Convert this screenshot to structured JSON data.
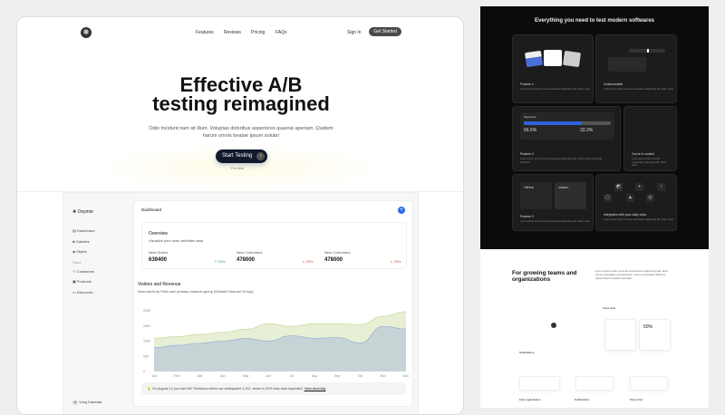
{
  "nav": {
    "links": [
      "Features",
      "Reviews",
      "Pricing",
      "FAQs"
    ],
    "sign_in": "Sign In",
    "get_started": "Get Started"
  },
  "hero": {
    "title_line1": "Effective A/B",
    "title_line2": "testing reimagined",
    "subtitle": "Odio incidunt nam sit illum. Voluptas doloribus asperiores quaerat aperiam. Quidem harum omnis beatae ipsum soluta!",
    "cta": "Start Testing",
    "cta_note": "For free"
  },
  "dashboard": {
    "brand": "Oxymor",
    "sidebar": [
      "Dashboard",
      "Galeries",
      "Objets"
    ],
    "section": "Store",
    "store_items": [
      "Customers",
      "Products",
      "Discounts"
    ],
    "user_initial": "M",
    "user": "Vung Kakeata",
    "header": "Dashboard",
    "overview": {
      "title": "Overview",
      "subtitle": "Visualize your main activities data",
      "stats": [
        {
          "label": "New Orders",
          "value": "639400",
          "change": "33%",
          "dir": "up"
        },
        {
          "label": "New Customers",
          "value": "478000",
          "change": "15%",
          "dir": "down"
        },
        {
          "label": "New Customers",
          "value": "478000",
          "change": "15%",
          "dir": "down"
        }
      ]
    },
    "chart_title": "Visitors and Revenue",
    "chart_subtitle": "New users by First user primary channel group (Default Channel Group)",
    "alert": "On August 12 you had 987 Sessions where we anticipated 1,242, which is 20% less than expected.",
    "alert_link": "View Anomaly"
  },
  "chart_data": {
    "type": "area",
    "categories": [
      "Jan",
      "Feb",
      "Mar",
      "Apr",
      "May",
      "Jun",
      "Jul",
      "Aug",
      "Sep",
      "Oct",
      "Nov",
      "Dec"
    ],
    "yticks": [
      "0",
      "500",
      "1000",
      "1500",
      "2000"
    ],
    "ylim": [
      0,
      2000
    ],
    "series": [
      {
        "values": [
          1090,
          1150,
          1220,
          1290,
          1390,
          1575,
          1485,
          1575,
          1575,
          1545,
          1820,
          1970
        ],
        "color": "#c9dca0"
      },
      {
        "values": [
          790,
          860,
          930,
          1000,
          1090,
          1000,
          1180,
          1090,
          1120,
          940,
          1485,
          1400
        ],
        "color": "#9fb3d9"
      }
    ]
  },
  "features": {
    "title": "Everything you need to test modern softwares",
    "cards": [
      {
        "title": "Feature 1",
        "desc": "Lorem ipsum dolor sit amet consectetur adipisicing elit. Dolor, quae."
      },
      {
        "title": "Customizable",
        "desc": "Lorem ipsum dolor sit amet consectetur adipisicing elit. Dolor, quae."
      },
      {
        "title": "Feature 3",
        "desc": "Lorem ipsum dolor sit amet consectetur adipisicing elit. Nemo nulla perferendis doloribus."
      },
      {
        "title": "You're in control",
        "desc": "Lorem ipsum dolor sit amet consectetur adipisicing elit. Dolor, quae."
      },
      {
        "title": "Feature 2",
        "desc": "Lorem ipsum dolor sit amet consectetur adipisicing elit. Dolor, quae."
      },
      {
        "title": "Integrates with your daily tools",
        "desc": "Lorem ipsum dolor sit amet consectetur adipisicing elit. Dolor, quae."
      }
    ],
    "segments_label": "Segments",
    "seg_a": "66.6%",
    "seg_b": "33.3%",
    "seg_fill": 0.666,
    "github": "GitHub",
    "column": "column"
  },
  "teams": {
    "title": "For growing teams and organizations",
    "desc": "Lorem ipsum dolor sit amet consectetur adipisicing elit. Eum omnis voluptatem accusantium nemo perspiciatis delectus atque autem repellat expedita.",
    "team_chat": "Team chat",
    "notifications": "Notifications",
    "flow": "Flow organization",
    "percent": "50%"
  }
}
